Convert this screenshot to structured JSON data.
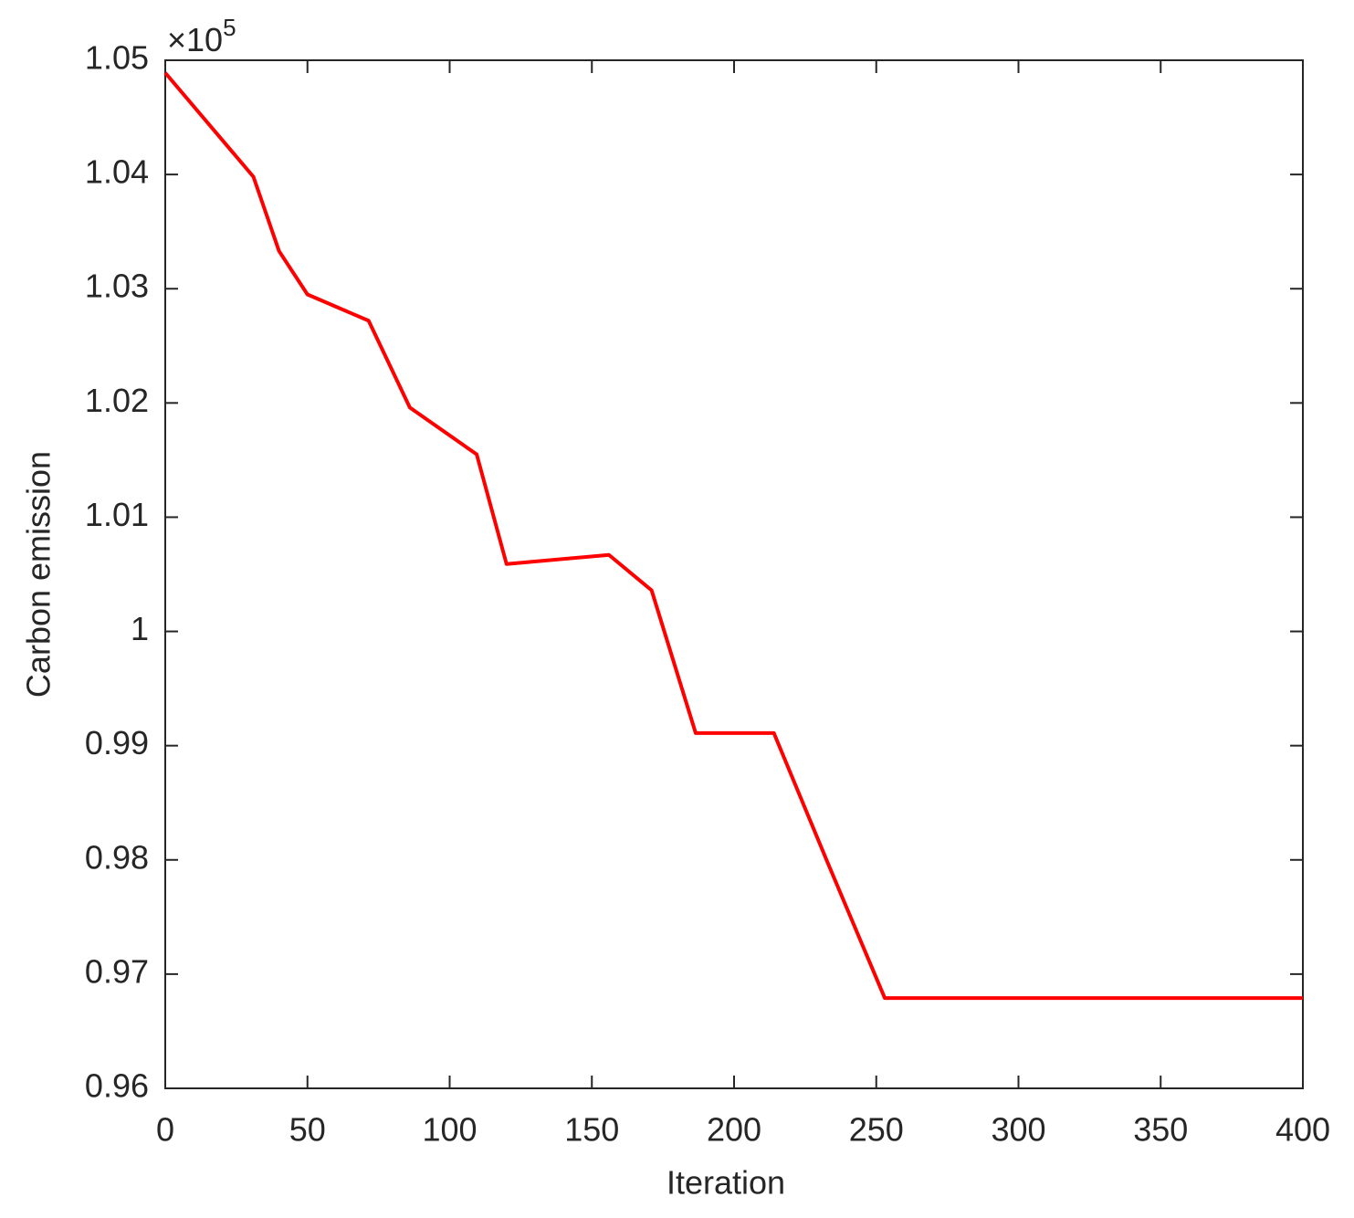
{
  "chart_data": {
    "type": "line",
    "x_label": "Iteration",
    "y_label": "Carbon emission",
    "y_multiplier": {
      "base": "×10",
      "exponent": "5"
    },
    "x": [
      0,
      31,
      40,
      50,
      71.5,
      86,
      109.5,
      120,
      156,
      171,
      186.5,
      214,
      233,
      253,
      400
    ],
    "series": [
      {
        "name": "Carbon emission",
        "color": "#ff0000",
        "values": [
          1.0489,
          1.0398,
          1.0333,
          1.0295,
          1.0272,
          1.0196,
          1.0155,
          1.0059,
          1.0067,
          1.0036,
          0.9911,
          0.9911,
          0.9797,
          0.9679,
          0.9679
        ]
      }
    ],
    "xlim": [
      0,
      400
    ],
    "xticks": [
      0,
      50,
      100,
      150,
      200,
      250,
      300,
      350,
      400
    ],
    "ylim": [
      0.96,
      1.05
    ],
    "yticks": [
      0.96,
      0.97,
      0.98,
      0.99,
      1,
      1.01,
      1.02,
      1.03,
      1.04,
      1.05
    ],
    "grid": false
  }
}
